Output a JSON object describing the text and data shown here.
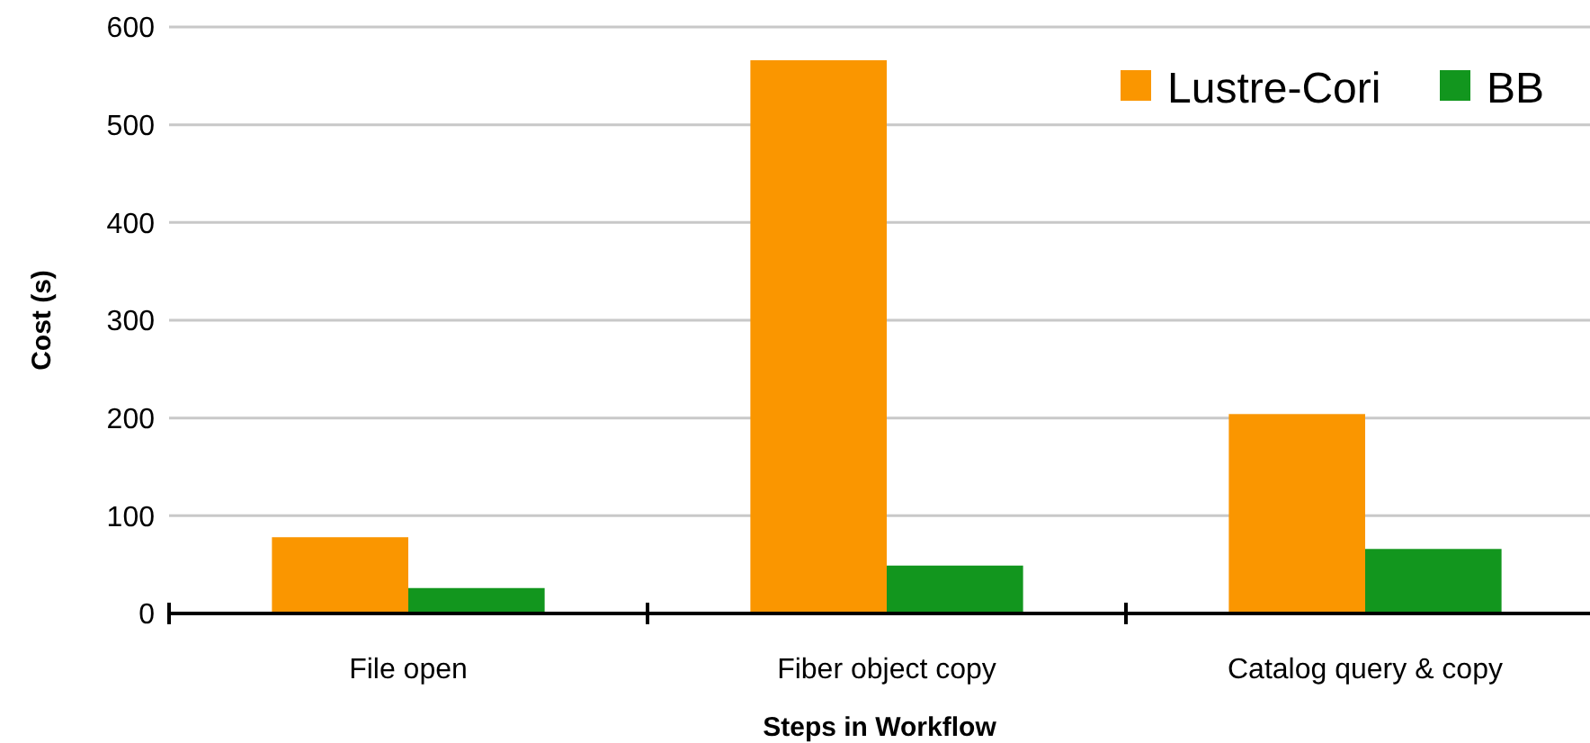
{
  "chart_data": {
    "type": "bar",
    "xlabel": "Steps in Workflow",
    "ylabel": "Cost (s)",
    "categories": [
      "File open",
      "Fiber object copy",
      "Catalog query & copy"
    ],
    "series": [
      {
        "name": "Lustre-Cori",
        "color": "#fa9600",
        "values": [
          78,
          566,
          204
        ]
      },
      {
        "name": "BB",
        "color": "#12961e",
        "values": [
          26,
          49,
          66
        ]
      }
    ],
    "ylim": [
      0,
      600
    ],
    "yticks": [
      0,
      100,
      200,
      300,
      400,
      500,
      600
    ],
    "grid": "y",
    "legend": "top right"
  }
}
